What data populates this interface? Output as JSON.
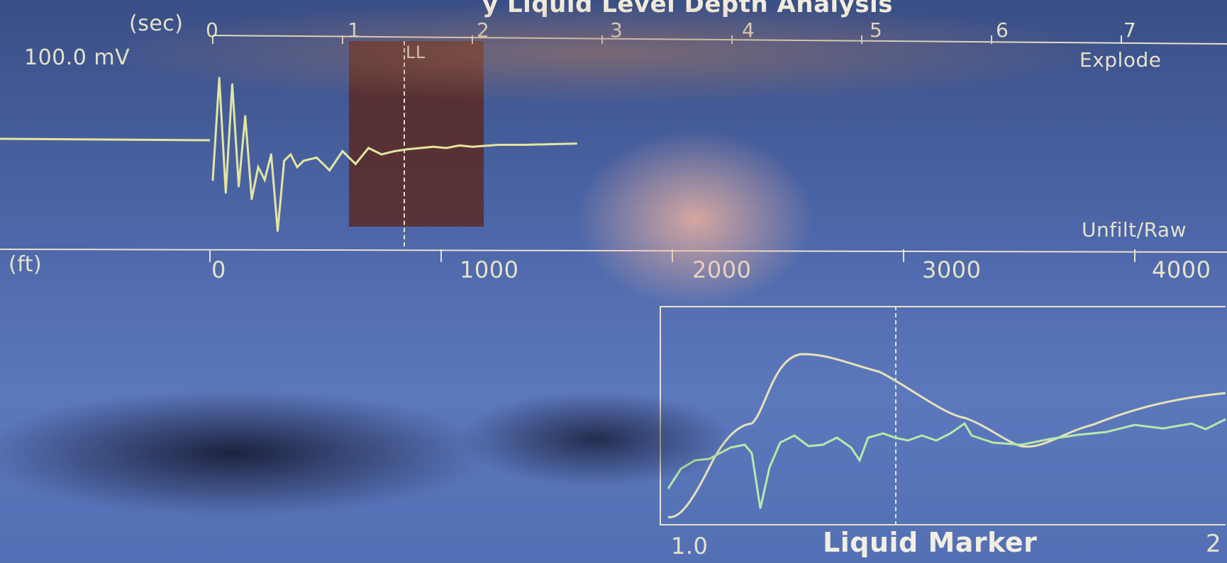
{
  "header": {
    "title_fragment": "y Liquid Level Depth Analysis"
  },
  "top_chart": {
    "time_unit": "(sec)",
    "time_ticks": [
      "0",
      "1",
      "2",
      "3",
      "4",
      "5",
      "6",
      "7"
    ],
    "amplitude": "100.0 mV",
    "mode": "Explode",
    "marker": "LL",
    "filter": "Unfilt/Raw",
    "depth_unit": "(ft)",
    "depth_ticks": [
      "0",
      "1000",
      "2000",
      "3000",
      "4000"
    ]
  },
  "liquid_marker": {
    "title": "Liquid Marker",
    "scale_left": "1.0",
    "scale_right": "2"
  },
  "colors": {
    "trace": "#e2e6a0",
    "trace_green": "#b8e8a8",
    "axis": "#e6e2cc",
    "ll_band": "#5f1e0a",
    "background": "#4c66a8"
  },
  "chart_data": {
    "type": "line",
    "x_unit": "sec",
    "xlim": [
      0,
      7
    ],
    "series": [
      {
        "x": [
          0,
          0.05,
          0.1,
          0.15,
          0.2,
          0.25,
          0.3,
          0.35,
          0.4,
          0.45,
          0.5,
          0.55,
          0.6,
          0.65,
          0.7,
          0.8,
          0.9,
          1.0,
          1.1,
          1.2,
          1.3,
          1.4,
          1.5,
          1.6,
          1.7,
          1.8,
          1.9,
          2.0,
          2.2,
          2.4,
          2.6,
          2.8
        ],
        "y": [
          -60,
          100,
          -80,
          90,
          -70,
          40,
          -90,
          -40,
          -60,
          -20,
          -140,
          -30,
          -20,
          -40,
          -30,
          -25,
          -45,
          -15,
          -35,
          -10,
          -20,
          -15,
          -12,
          -10,
          -8,
          -10,
          -6,
          -8,
          -5,
          -5,
          -4,
          -3
        ]
      }
    ]
  }
}
